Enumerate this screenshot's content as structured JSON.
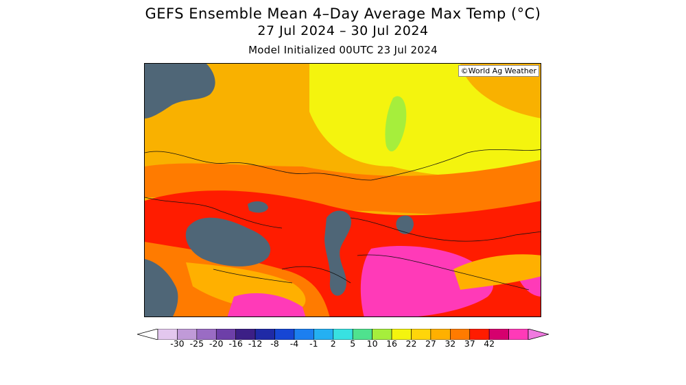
{
  "map": {
    "title": "GEFS Ensemble Mean 4–Day Average Max Temp (°C)",
    "date_range": "27 Jul 2024 – 30 Jul 2024",
    "model_init": "Model Initialized 00UTC 23 Jul 2024",
    "credit": "©World Ag Weather",
    "water_color": "#4f6677"
  },
  "legend": {
    "bins": [
      {
        "color": "#e3c7ee"
      },
      {
        "color": "#c09ad8"
      },
      {
        "color": "#9a6cc4"
      },
      {
        "color": "#6d3fa8"
      },
      {
        "color": "#3c1f86"
      },
      {
        "color": "#1f2aa6"
      },
      {
        "color": "#1646d4"
      },
      {
        "color": "#1c7ff0"
      },
      {
        "color": "#24b0f2"
      },
      {
        "color": "#38e1e1"
      },
      {
        "color": "#4fe28e"
      },
      {
        "color": "#a6ee3c"
      },
      {
        "color": "#f4f40e"
      },
      {
        "color": "#ffd50a"
      },
      {
        "color": "#ffb000"
      },
      {
        "color": "#ff7b00"
      },
      {
        "color": "#ff1c00"
      },
      {
        "color": "#d6006e"
      },
      {
        "color": "#ff3ab8"
      }
    ],
    "low_end_color": "#ffffff",
    "high_end_color": "#f07ae0",
    "tick_labels": [
      "-30",
      "-25",
      "-20",
      "-16",
      "-12",
      "-8",
      "-4",
      "-1",
      "2",
      "5",
      "10",
      "16",
      "22",
      "27",
      "32",
      "37",
      "42"
    ]
  }
}
